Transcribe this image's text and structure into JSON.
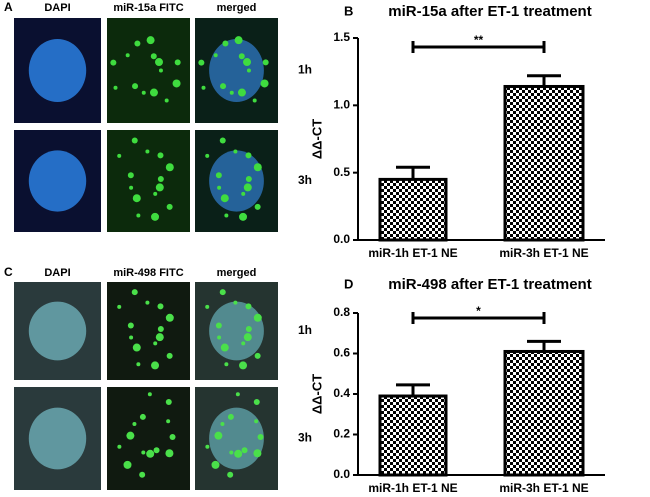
{
  "image_panels": [
    {
      "label": "A",
      "columns": [
        "DAPI",
        "miR-15a FITC",
        "merged"
      ],
      "rows": [
        "1h",
        "3h"
      ]
    },
    {
      "label": "C",
      "columns": [
        "DAPI",
        "miR-498 FITC",
        "merged"
      ],
      "rows": [
        "1h",
        "3h"
      ]
    }
  ],
  "chart_data": [
    {
      "type": "bar",
      "panel_label": "B",
      "title": "miR-15a after ET-1 treatment",
      "y_label": "ΔΔ-CT",
      "categories": [
        "miR-1h ET-1 NE",
        "miR-3h ET-1 NE"
      ],
      "values": [
        0.45,
        1.14
      ],
      "errors": [
        0.09,
        0.08
      ],
      "color": "#000000",
      "ylim": [
        0,
        1.5
      ],
      "yticks": [
        {
          "value": 0,
          "label": "0.0"
        },
        0.5,
        {
          "value": 1,
          "label": "1.0"
        },
        1.5
      ],
      "annotation": "**"
    },
    {
      "type": "bar",
      "panel_label": "D",
      "title": "miR-498 after ET-1 treatment",
      "y_label": "ΔΔ-CT",
      "categories": [
        "miR-1h ET-1 NE",
        "miR-3h ET-1 NE"
      ],
      "values": [
        0.39,
        0.61
      ],
      "errors": [
        0.055,
        0.05
      ],
      "color": "#000000",
      "ylim": [
        0,
        0.8
      ],
      "yticks": [
        {
          "value": 0,
          "label": "0.0"
        },
        0.2,
        0.4,
        0.6,
        0.8
      ],
      "annotation": "*"
    }
  ]
}
